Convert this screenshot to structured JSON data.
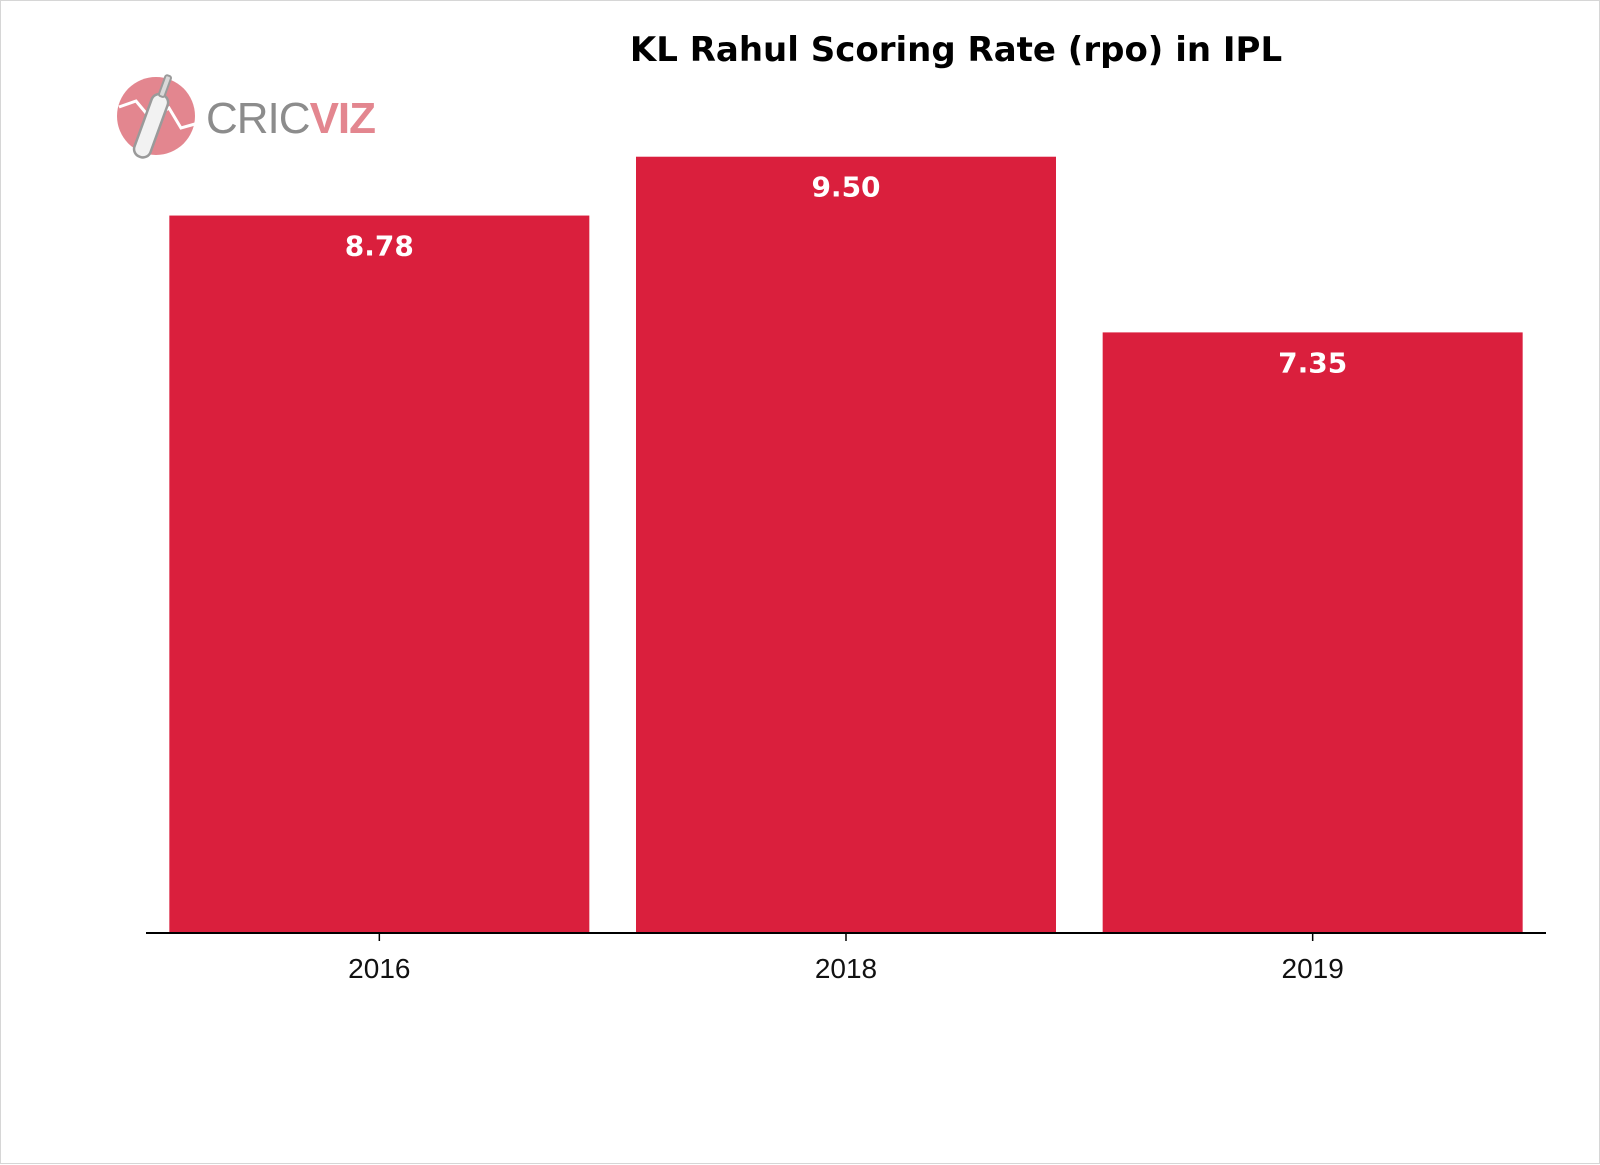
{
  "logo": {
    "text_part1": "CRIC",
    "text_part2": "VIZ",
    "color_gray": "#8c8c8c",
    "color_pink": "#e3868f",
    "icon": "cricket-bat-icon"
  },
  "chart_data": {
    "type": "bar",
    "title": "KL Rahul Scoring Rate (rpo) in IPL",
    "categories": [
      "2016",
      "2018",
      "2019"
    ],
    "values": [
      8.78,
      9.5,
      7.35
    ],
    "data_labels": [
      "8.78",
      "9.50",
      "7.35"
    ],
    "ylim": [
      0,
      10.5
    ],
    "bar_color": "#da1f3d",
    "grid": false,
    "legend": "none",
    "xlabel": "",
    "ylabel": ""
  }
}
